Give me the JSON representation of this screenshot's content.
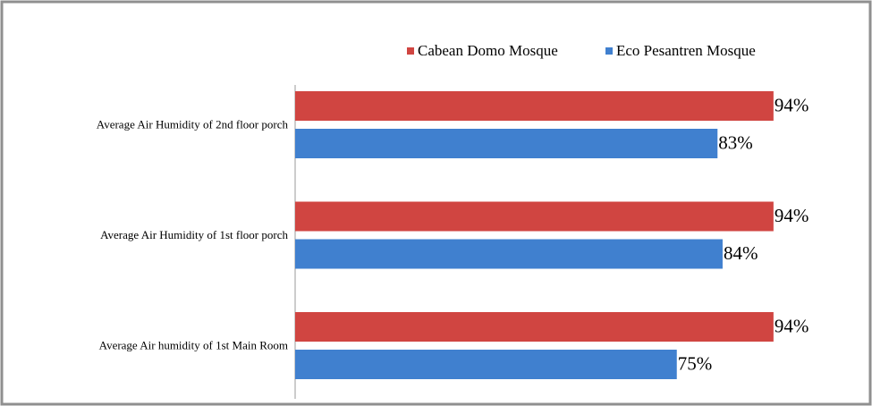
{
  "chart_data": {
    "type": "bar",
    "orientation": "horizontal",
    "categories": [
      "Average Air Humidity of 2nd floor porch",
      "Average Air Humidity of 1st floor porch",
      "Average Air humidity of 1st Main Room"
    ],
    "series": [
      {
        "name": "Cabean Domo Mosque",
        "color": "#d04541",
        "values": [
          94,
          94,
          94
        ],
        "value_labels": [
          "94%",
          "94%",
          "94%"
        ]
      },
      {
        "name": "Eco Pesantren Mosque",
        "color": "#4080cf",
        "values": [
          83,
          84,
          75
        ],
        "value_labels": [
          "83%",
          "84%",
          "75%"
        ]
      }
    ]
  }
}
